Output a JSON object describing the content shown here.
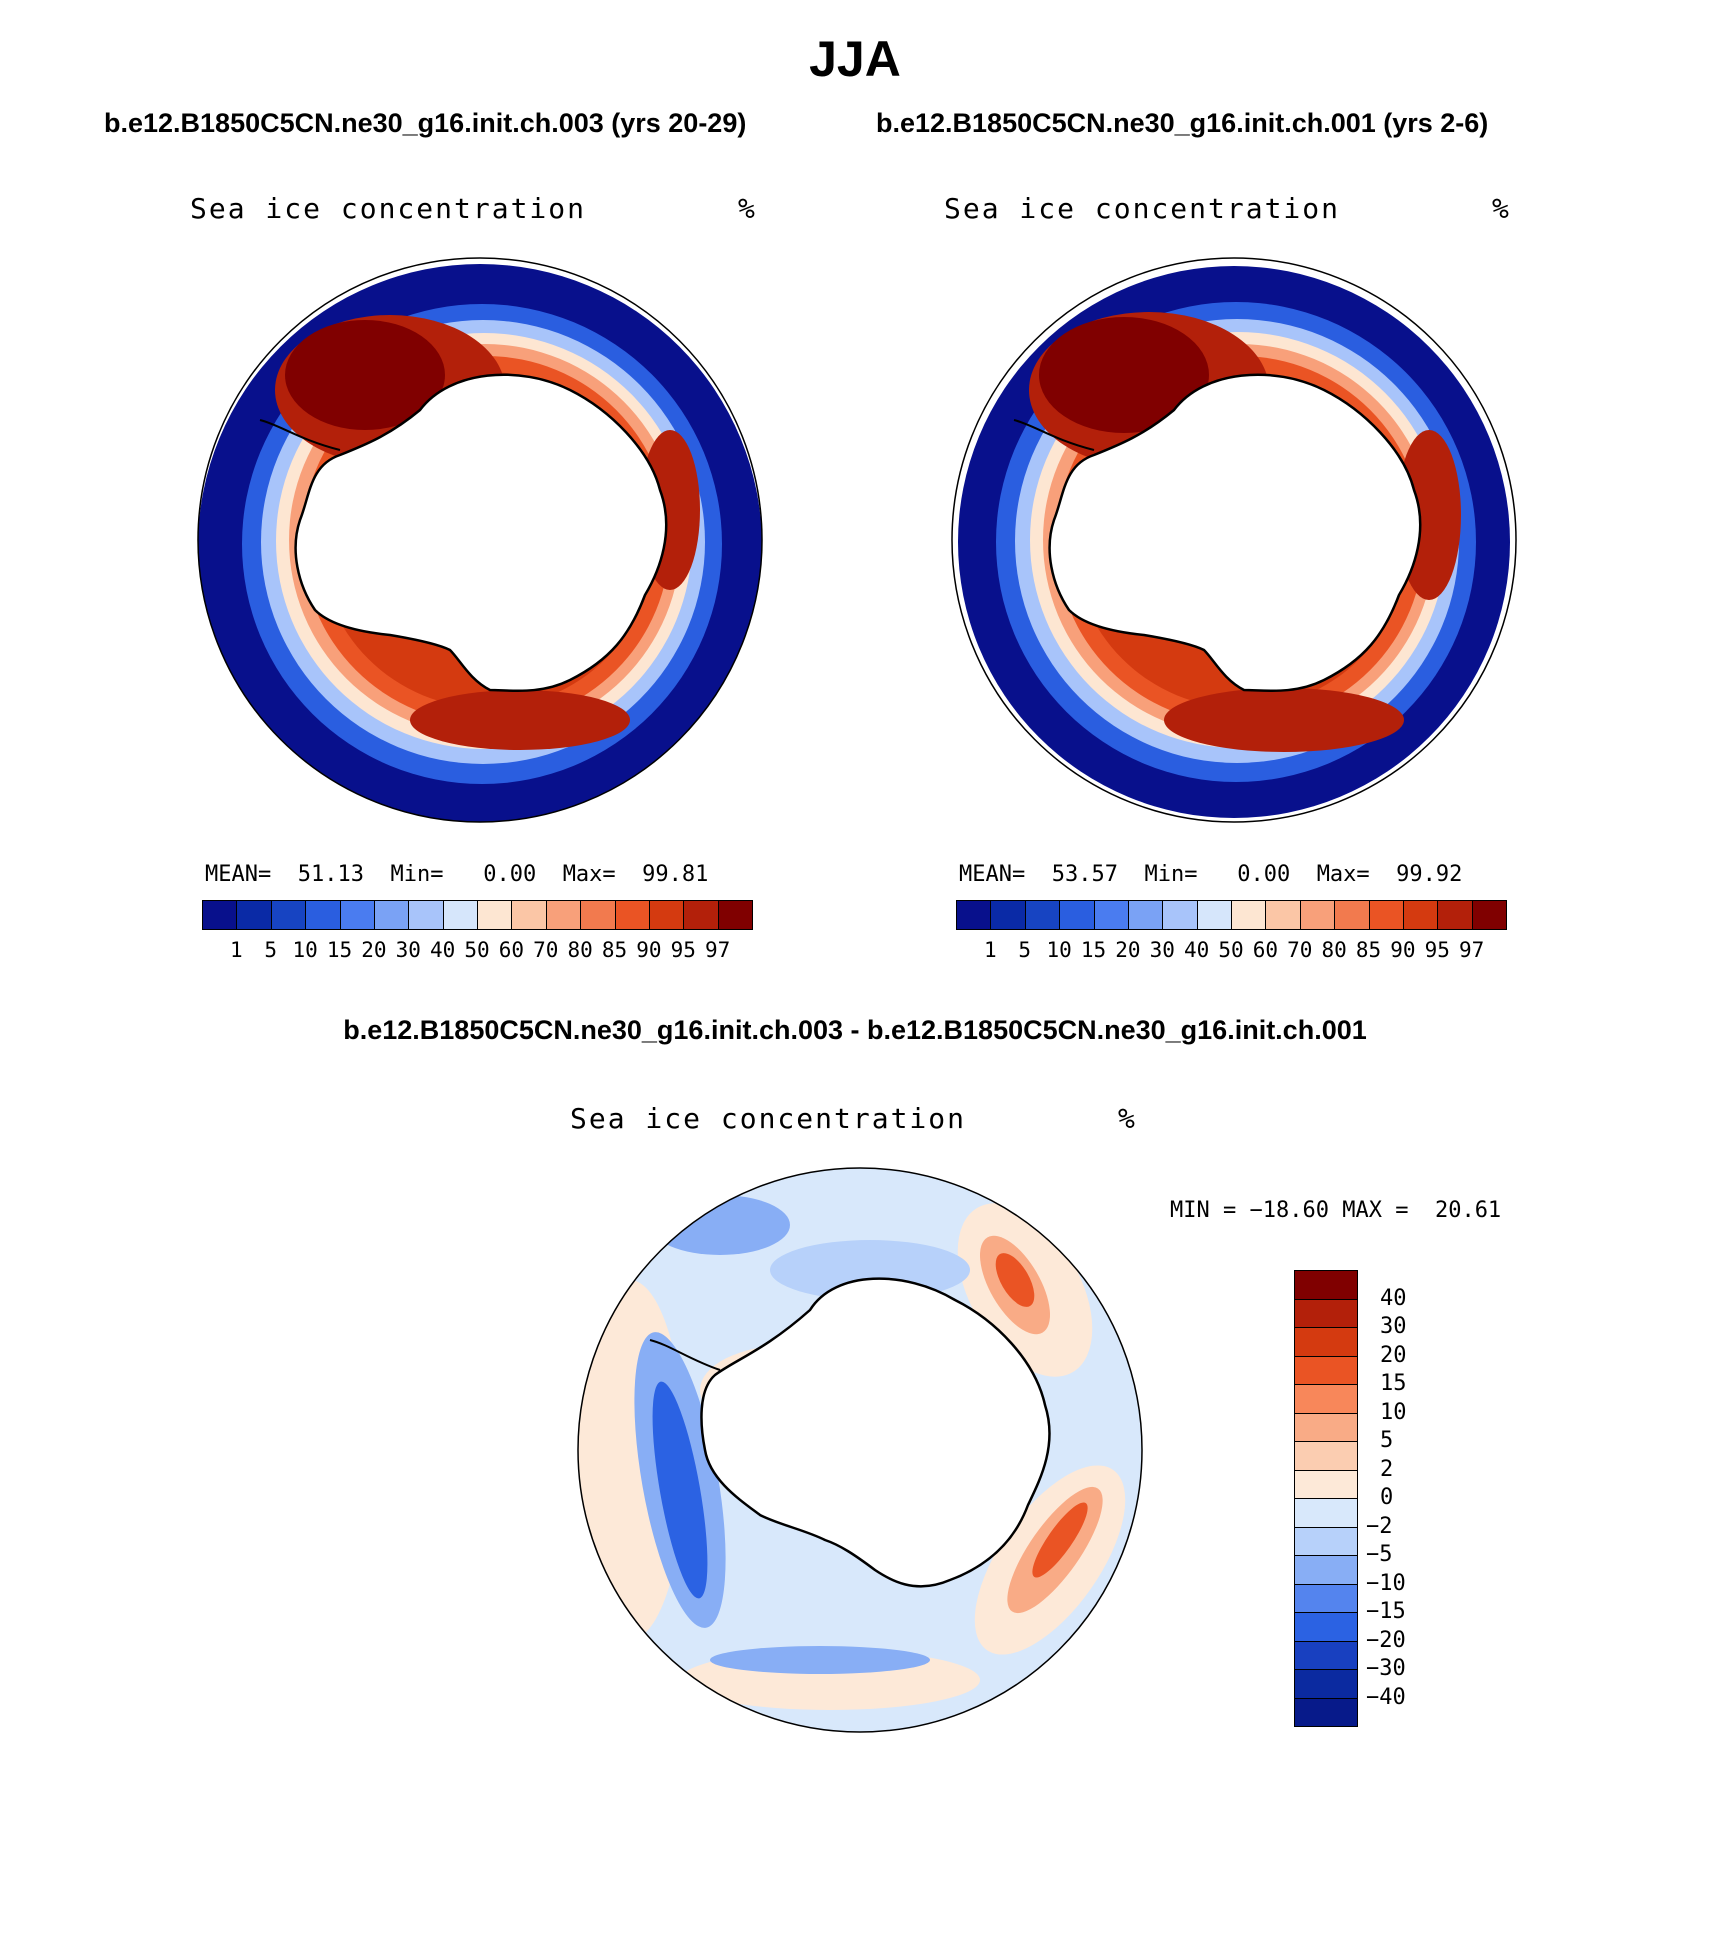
{
  "header": {
    "season": "JJA",
    "left_case": "b.e12.B1850C5CN.ne30_g16.init.ch.003 (yrs 20-29)",
    "right_case": "b.e12.B1850C5CN.ne30_g16.init.ch.001 (yrs 2-6)",
    "diff_title": "b.e12.B1850C5CN.ne30_g16.init.ch.003 - b.e12.B1850C5CN.ne30_g16.init.ch.001"
  },
  "panels": [
    {
      "variable": "Sea ice concentration",
      "units": "%",
      "stats": {
        "mean_label": "MEAN=",
        "mean": "51.13",
        "min_label": "Min=",
        "min": "0.00",
        "max_label": "Max=",
        "max": "99.81"
      }
    },
    {
      "variable": "Sea ice concentration",
      "units": "%",
      "stats": {
        "mean_label": "MEAN=",
        "mean": "53.57",
        "min_label": "Min=",
        "min": "0.00",
        "max_label": "Max=",
        "max": "99.92"
      }
    }
  ],
  "abs_colorbar": {
    "colors": [
      "#08108c",
      "#0a2aa6",
      "#1744c2",
      "#2a5ee0",
      "#4a7cf0",
      "#7aa2f5",
      "#a8c4fa",
      "#d6e6fb",
      "#fde6d2",
      "#fbc6a6",
      "#f8a07a",
      "#f27a4e",
      "#ea5424",
      "#d43a10",
      "#b3200a",
      "#800000"
    ],
    "ticks": [
      "1",
      "5",
      "10",
      "15",
      "20",
      "30",
      "40",
      "50",
      "60",
      "70",
      "80",
      "85",
      "90",
      "95",
      "97"
    ]
  },
  "diff_panel": {
    "variable": "Sea ice concentration",
    "units": "%",
    "min_label": "MIN =",
    "min": "−18.60",
    "max_label": "MAX =",
    "max": "20.61"
  },
  "diff_colorbar": {
    "colors_top_to_bottom": [
      "#800000",
      "#b3200a",
      "#d43a10",
      "#ea5424",
      "#f8875a",
      "#f9ab86",
      "#fbcdb1",
      "#fde9d8",
      "#d8e8fb",
      "#b7d1fa",
      "#88aef5",
      "#5484ee",
      "#2b62e3",
      "#1840c0",
      "#0b2aa0",
      "#071a8a"
    ],
    "ticks_top_to_bottom": [
      "40",
      "30",
      "20",
      "15",
      "10",
      "5",
      "2",
      "0",
      "−2",
      "−5",
      "−10",
      "−15",
      "−20",
      "−30",
      "−40"
    ]
  }
}
